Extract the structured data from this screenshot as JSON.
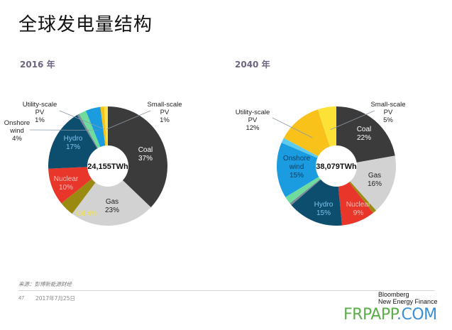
{
  "page": {
    "title": "全球发电量结构",
    "source": "来源：彭博新能源财经",
    "page_number": "47",
    "date": "2017年7月25日",
    "brand_line1": "Bloomberg",
    "brand_line2": "New Energy Finance",
    "watermark_part1": "FRPAPP",
    "watermark_part2": ".COM"
  },
  "chart_data": [
    {
      "type": "pie",
      "title": "2016 年",
      "center_label": "24,155TWh",
      "start": "12 o'clock, clockwise",
      "slices": [
        {
          "name": "Coal",
          "value": 37,
          "label": "Coal",
          "pct": "37%",
          "color": "#3b3b3b",
          "text_color": "#ffffff",
          "label_mode": "inside"
        },
        {
          "name": "Gas",
          "value": 23,
          "label": "Gas",
          "pct": "23%",
          "color": "#d2d2d2",
          "text_color": "#222222",
          "label_mode": "inside"
        },
        {
          "name": "Oil",
          "value": 4,
          "label": "Oil",
          "pct": "4%",
          "color": "#9b8a12",
          "text_color": "#f2e24a",
          "label_mode": "inside"
        },
        {
          "name": "Nuclear",
          "value": 10,
          "label": "Nuclear",
          "pct": "10%",
          "color": "#e8362a",
          "text_color": "#f7c0b8",
          "label_mode": "inside"
        },
        {
          "name": "Hydro",
          "value": 17,
          "label": "Hydro",
          "pct": "17%",
          "color": "#0d4d6e",
          "text_color": "#7cc4ee",
          "label_mode": "inside"
        },
        {
          "name": "Other",
          "value": 0.6,
          "label": "",
          "pct": "",
          "color": "#7a8a9a",
          "text_color": "#222222",
          "label_mode": "none"
        },
        {
          "name": "Offshore wind",
          "value": 2,
          "label": "",
          "pct": "",
          "color": "#6fdc9e",
          "text_color": "#222222",
          "label_mode": "none"
        },
        {
          "name": "Onshore wind",
          "value": 4,
          "label": "Onshore wind",
          "pct": "4%",
          "color": "#1c9ce0",
          "text_color": "#222222",
          "label_mode": "callout-left"
        },
        {
          "name": "Utility-scale PV",
          "value": 1,
          "label": "Utility-scale PV",
          "pct": "1%",
          "color": "#f7c31b",
          "text_color": "#222222",
          "label_mode": "callout-top"
        },
        {
          "name": "Small-scale PV",
          "value": 1,
          "label": "Small-scale PV",
          "pct": "1%",
          "color": "#fbe24a",
          "text_color": "#222222",
          "label_mode": "callout-right"
        }
      ]
    },
    {
      "type": "pie",
      "title": "2040 年",
      "center_label": "38,079TWh",
      "start": "12 o'clock, clockwise",
      "slices": [
        {
          "name": "Coal",
          "value": 22,
          "label": "Coal",
          "pct": "22%",
          "color": "#3b3b3b",
          "text_color": "#ffffff",
          "label_mode": "inside"
        },
        {
          "name": "Gas",
          "value": 16,
          "label": "Gas",
          "pct": "16%",
          "color": "#d2d2d2",
          "text_color": "#222222",
          "label_mode": "inside"
        },
        {
          "name": "Oil",
          "value": 1,
          "label": "",
          "pct": "",
          "color": "#9b8a12",
          "text_color": "#222222",
          "label_mode": "none"
        },
        {
          "name": "Nuclear",
          "value": 9,
          "label": "Nuclear",
          "pct": "9%",
          "color": "#e8362a",
          "text_color": "#f7c0b8",
          "label_mode": "inside"
        },
        {
          "name": "Hydro",
          "value": 15,
          "label": "Hydro",
          "pct": "15%",
          "color": "#0d4d6e",
          "text_color": "#7cc4ee",
          "label_mode": "inside"
        },
        {
          "name": "Other",
          "value": 0.6,
          "label": "",
          "pct": "",
          "color": "#7a8a9a",
          "text_color": "#222222",
          "label_mode": "none"
        },
        {
          "name": "Offshore wind",
          "value": 2,
          "label": "",
          "pct": "",
          "color": "#6fdc9e",
          "text_color": "#222222",
          "label_mode": "none"
        },
        {
          "name": "Onshore wind",
          "value": 15,
          "label": "Onshore wind",
          "pct": "15%",
          "color": "#1c9ce0",
          "text_color": "#0d3c5e",
          "label_mode": "inside"
        },
        {
          "name": "Other renewables",
          "value": 1.4,
          "label": "",
          "pct": "",
          "color": "#5ccbef",
          "text_color": "#222222",
          "label_mode": "none"
        },
        {
          "name": "Utility-scale PV",
          "value": 12,
          "label": "Utility-scale PV",
          "pct": "12%",
          "color": "#f9c21a",
          "text_color": "#222222",
          "label_mode": "callout-left"
        },
        {
          "name": "Small-scale PV",
          "value": 5,
          "label": "Small-scale PV",
          "pct": "5%",
          "color": "#fce236",
          "text_color": "#222222",
          "label_mode": "callout-right"
        }
      ]
    }
  ]
}
